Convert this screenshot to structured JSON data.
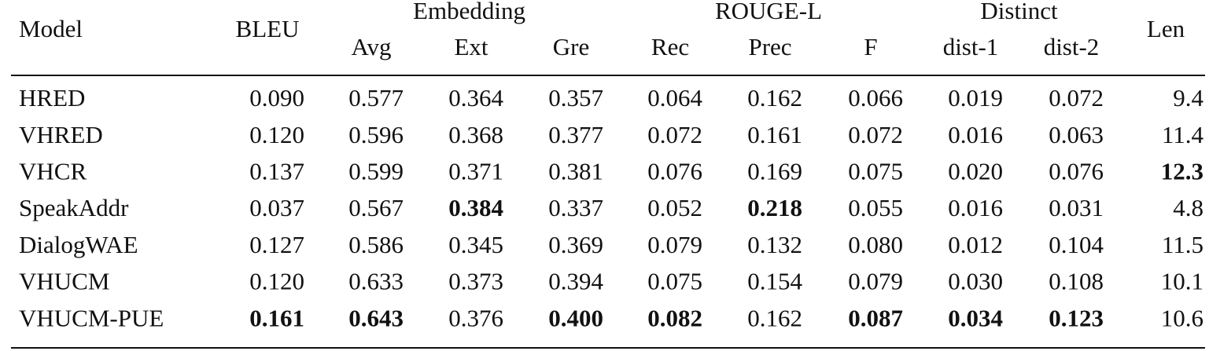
{
  "table": {
    "header": {
      "model": "Model",
      "bleu": "BLEU",
      "groups": [
        {
          "label": "Embedding",
          "columns": [
            "Avg",
            "Ext",
            "Gre"
          ]
        },
        {
          "label": "ROUGE-L",
          "columns": [
            "Rec",
            "Prec",
            "F"
          ]
        },
        {
          "label": "Distinct",
          "columns": [
            "dist-1",
            "dist-2"
          ]
        }
      ],
      "len": "Len"
    },
    "rows": [
      {
        "model": "HRED",
        "values": [
          "0.090",
          "0.577",
          "0.364",
          "0.357",
          "0.064",
          "0.162",
          "0.066",
          "0.019",
          "0.072",
          "9.4"
        ],
        "bold": []
      },
      {
        "model": "VHRED",
        "values": [
          "0.120",
          "0.596",
          "0.368",
          "0.377",
          "0.072",
          "0.161",
          "0.072",
          "0.016",
          "0.063",
          "11.4"
        ],
        "bold": []
      },
      {
        "model": "VHCR",
        "values": [
          "0.137",
          "0.599",
          "0.371",
          "0.381",
          "0.076",
          "0.169",
          "0.075",
          "0.020",
          "0.076",
          "12.3"
        ],
        "bold": [
          9
        ]
      },
      {
        "model": "SpeakAddr",
        "values": [
          "0.037",
          "0.567",
          "0.384",
          "0.337",
          "0.052",
          "0.218",
          "0.055",
          "0.016",
          "0.031",
          "4.8"
        ],
        "bold": [
          2,
          5
        ]
      },
      {
        "model": "DialogWAE",
        "values": [
          "0.127",
          "0.586",
          "0.345",
          "0.369",
          "0.079",
          "0.132",
          "0.080",
          "0.012",
          "0.104",
          "11.5"
        ],
        "bold": []
      },
      {
        "model": "VHUCM",
        "values": [
          "0.120",
          "0.633",
          "0.373",
          "0.394",
          "0.075",
          "0.154",
          "0.079",
          "0.030",
          "0.108",
          "10.1"
        ],
        "bold": []
      },
      {
        "model": "VHUCM-PUE",
        "values": [
          "0.161",
          "0.643",
          "0.376",
          "0.400",
          "0.082",
          "0.162",
          "0.087",
          "0.034",
          "0.123",
          "10.6"
        ],
        "bold": [
          0,
          1,
          3,
          4,
          6,
          7,
          8
        ]
      }
    ]
  }
}
